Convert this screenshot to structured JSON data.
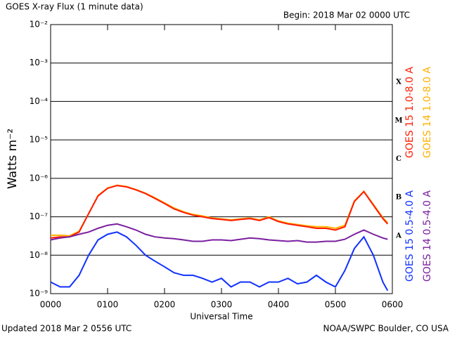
{
  "chart_data": {
    "type": "line",
    "title": "GOES X-ray Flux (1 minute data)",
    "subtitle": "Begin: 2018 Mar 02 0000 UTC",
    "xlabel": "Universal Time",
    "ylabel": "Watts m⁻²",
    "footer_left": "Updated 2018 Mar  2 0556 UTC",
    "footer_right": "NOAA/SWPC Boulder, CO USA",
    "log_y": true,
    "grid": true,
    "flare_classes": [
      "X",
      "M",
      "C",
      "B",
      "A"
    ],
    "xlim": [
      0,
      360
    ],
    "xticks": [
      {
        "value": 0,
        "label": "0000"
      },
      {
        "value": 60,
        "label": "0100"
      },
      {
        "value": 120,
        "label": "0200"
      },
      {
        "value": 180,
        "label": "0300"
      },
      {
        "value": 240,
        "label": "0400"
      },
      {
        "value": 300,
        "label": "0500"
      },
      {
        "value": 360,
        "label": "0600"
      }
    ],
    "ylim": [
      1e-09,
      0.01
    ],
    "yticks": [
      {
        "value": 1e-09,
        "label": "10⁻⁹"
      },
      {
        "value": 1e-08,
        "label": "10⁻⁸"
      },
      {
        "value": 1e-07,
        "label": "10⁻⁷"
      },
      {
        "value": 1e-06,
        "label": "10⁻⁶"
      },
      {
        "value": 1e-05,
        "label": "10⁻⁵"
      },
      {
        "value": 0.0001,
        "label": "10⁻⁴"
      },
      {
        "value": 0.001,
        "label": "10⁻³"
      },
      {
        "value": 0.01,
        "label": "10⁻²"
      }
    ],
    "x": [
      0,
      10,
      20,
      30,
      40,
      50,
      60,
      70,
      80,
      90,
      100,
      110,
      120,
      130,
      140,
      150,
      160,
      170,
      180,
      190,
      200,
      210,
      220,
      230,
      240,
      250,
      260,
      270,
      280,
      290,
      300,
      310,
      320,
      330,
      340,
      350,
      355
    ],
    "series": [
      {
        "name": "GOES 14 1.0-8.0 A",
        "color": "#ffb000",
        "values": [
          3.3e-08,
          3.3e-08,
          3.2e-08,
          4.2e-08,
          1.2e-07,
          3.6e-07,
          5.6e-07,
          6.6e-07,
          6.1e-07,
          5.1e-07,
          4.1e-07,
          3.1e-07,
          2.3e-07,
          1.7e-07,
          1.35e-07,
          1.15e-07,
          1.05e-07,
          9.3e-08,
          8.8e-08,
          8.3e-08,
          8.8e-08,
          9.3e-08,
          8.3e-08,
          1e-07,
          7.8e-08,
          6.8e-08,
          6.3e-08,
          5.8e-08,
          5.5e-08,
          5.5e-08,
          5e-08,
          6e-08,
          2.6e-07,
          4.6e-07,
          2.1e-07,
          9.5e-08,
          7e-08
        ]
      },
      {
        "name": "GOES 15 1.0-8.0 A",
        "color": "#ff1a00",
        "values": [
          2.8e-08,
          3e-08,
          3e-08,
          4e-08,
          1.2e-07,
          3.5e-07,
          5.5e-07,
          6.5e-07,
          6e-07,
          5e-07,
          4e-07,
          3e-07,
          2.2e-07,
          1.6e-07,
          1.3e-07,
          1.1e-07,
          1e-07,
          9e-08,
          8.5e-08,
          8e-08,
          8.5e-08,
          9e-08,
          8e-08,
          9.5e-08,
          7.5e-08,
          6.5e-08,
          6e-08,
          5.5e-08,
          5e-08,
          5e-08,
          4.5e-08,
          5.5e-08,
          2.5e-07,
          4.5e-07,
          2e-07,
          9e-08,
          6.5e-08
        ]
      },
      {
        "name": "GOES 14 0.5-4.0 A",
        "color": "#7a1fa0",
        "values": [
          2.5e-08,
          2.8e-08,
          3e-08,
          3.5e-08,
          4e-08,
          5e-08,
          6e-08,
          6.5e-08,
          5.5e-08,
          4.5e-08,
          3.5e-08,
          3e-08,
          2.8e-08,
          2.7e-08,
          2.5e-08,
          2.3e-08,
          2.3e-08,
          2.5e-08,
          2.5e-08,
          2.4e-08,
          2.6e-08,
          2.8e-08,
          2.7e-08,
          2.5e-08,
          2.4e-08,
          2.3e-08,
          2.4e-08,
          2.2e-08,
          2.2e-08,
          2.3e-08,
          2.3e-08,
          2.6e-08,
          3.5e-08,
          4.5e-08,
          3.5e-08,
          2.8e-08,
          2.6e-08
        ]
      },
      {
        "name": "GOES 15 0.5-4.0 A",
        "color": "#1030ff",
        "values": [
          2e-09,
          1.5e-09,
          1.5e-09,
          3e-09,
          1e-08,
          2.5e-08,
          3.5e-08,
          4e-08,
          3e-08,
          1.8e-08,
          1e-08,
          7e-09,
          5e-09,
          3.5e-09,
          3e-09,
          3e-09,
          2.5e-09,
          2e-09,
          2.5e-09,
          1.5e-09,
          2e-09,
          2e-09,
          1.5e-09,
          2e-09,
          2e-09,
          2.5e-09,
          1.8e-09,
          2e-09,
          3e-09,
          2e-09,
          1.5e-09,
          4e-09,
          1.5e-08,
          3e-08,
          1e-08,
          2e-09,
          1.2e-09
        ]
      }
    ]
  }
}
